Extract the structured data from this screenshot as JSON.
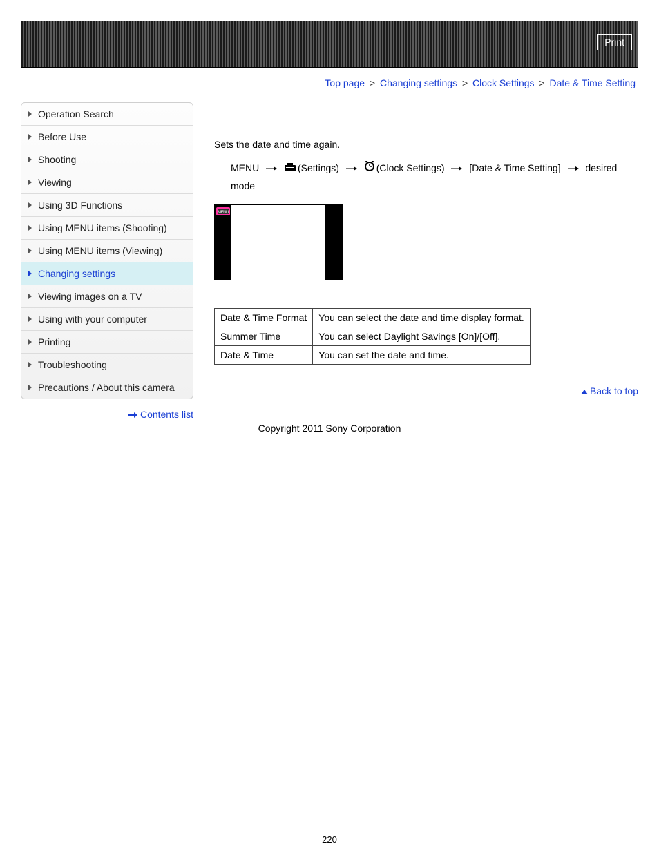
{
  "header": {
    "print_label": "Print"
  },
  "breadcrumb": {
    "items": [
      {
        "label": "Top page"
      },
      {
        "label": "Changing settings"
      },
      {
        "label": "Clock Settings"
      }
    ],
    "current": "Date & Time Setting",
    "separator": ">"
  },
  "sidebar": {
    "items": [
      {
        "label": "Operation Search",
        "active": false
      },
      {
        "label": "Before Use",
        "active": false
      },
      {
        "label": "Shooting",
        "active": false
      },
      {
        "label": "Viewing",
        "active": false
      },
      {
        "label": "Using 3D Functions",
        "active": false
      },
      {
        "label": "Using MENU items (Shooting)",
        "active": false
      },
      {
        "label": "Using MENU items (Viewing)",
        "active": false
      },
      {
        "label": "Changing settings",
        "active": true
      },
      {
        "label": "Viewing images on a TV",
        "active": false
      },
      {
        "label": "Using with your computer",
        "active": false
      },
      {
        "label": "Printing",
        "active": false
      },
      {
        "label": "Troubleshooting",
        "active": false
      },
      {
        "label": "Precautions / About this camera",
        "active": false
      }
    ],
    "contents_link": "Contents list"
  },
  "main": {
    "intro": "Sets the date and time again.",
    "menu_path": {
      "menu_label": "MENU",
      "settings_label": "(Settings)",
      "clock_label": "(Clock Settings)",
      "setting_label": "[Date & Time Setting]",
      "desired_label": "desired mode"
    },
    "thumb_badge": "MENU",
    "table": {
      "rows": [
        {
          "name": "Date & Time Format",
          "desc": "You can select the date and time display format."
        },
        {
          "name": "Summer Time",
          "desc": "You can select Daylight Savings [On]/[Off]."
        },
        {
          "name": "Date & Time",
          "desc": "You can set the date and time."
        }
      ]
    }
  },
  "back_to_top": "Back to top",
  "copyright": "Copyright 2011 Sony Corporation",
  "page_number": "220",
  "colors": {
    "link": "#1a3fd4",
    "active_bg": "#d6f0f4",
    "border": "#cfcfcf"
  }
}
